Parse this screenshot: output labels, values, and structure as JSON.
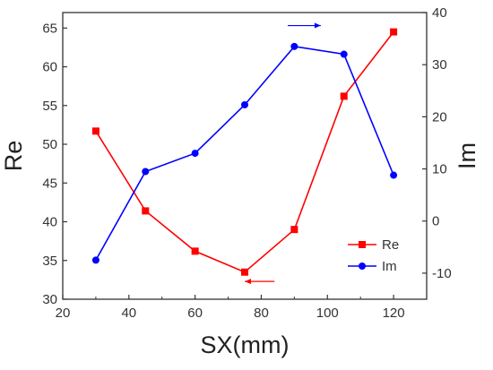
{
  "chart_data": {
    "type": "line",
    "x": [
      30,
      45,
      60,
      75,
      90,
      105,
      120
    ],
    "xlabel": "SX(mm)",
    "xlim": [
      20,
      130
    ],
    "xticks": [
      20,
      40,
      60,
      80,
      100,
      120
    ],
    "ylabel_left": "Re",
    "ylim_left": [
      30,
      67
    ],
    "yticks_left": [
      30,
      35,
      40,
      45,
      50,
      55,
      60,
      65
    ],
    "ylabel_right": "Im",
    "ylim_right": [
      -15,
      40
    ],
    "yticks_right": [
      -10,
      0,
      10,
      20,
      30,
      40
    ],
    "series": [
      {
        "name": "Re",
        "axis": "left",
        "color": "#ff0000",
        "marker": "square",
        "values": [
          51.7,
          41.4,
          36.2,
          33.5,
          39.0,
          56.2,
          64.5
        ]
      },
      {
        "name": "Im",
        "axis": "right",
        "color": "#0000ff",
        "marker": "circle",
        "values": [
          -7.5,
          9.5,
          13.0,
          22.3,
          33.5,
          32.0,
          8.8
        ]
      }
    ],
    "annotations": [
      {
        "type": "arrow",
        "direction": "right",
        "color": "#0000ff",
        "x_from": 88,
        "x_to": 98,
        "y_right": 37.5
      },
      {
        "type": "arrow",
        "direction": "left",
        "color": "#ff0000",
        "x_from": 84,
        "x_to": 75,
        "y_left": 32.3
      }
    ],
    "legend": {
      "position": "bottom-right",
      "entries": [
        "Re",
        "Im"
      ]
    },
    "grid": false
  }
}
